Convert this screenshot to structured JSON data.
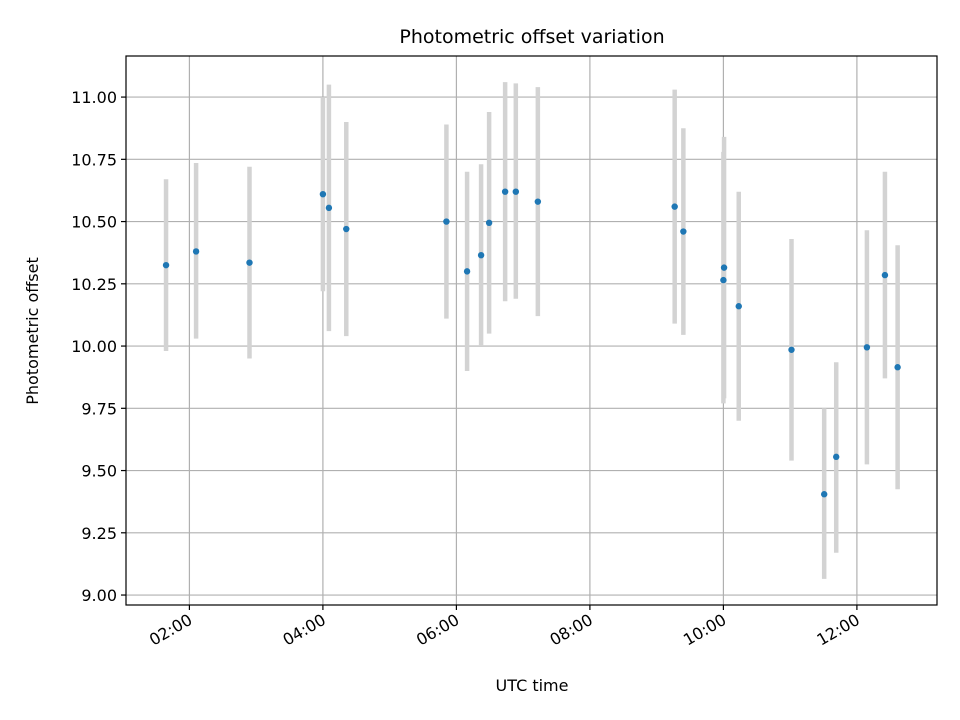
{
  "chart_data": {
    "type": "scatter",
    "title": "Photometric offset variation",
    "xlabel": "UTC time",
    "ylabel": "Photometric offset",
    "xlim": [
      1.05,
      13.2
    ],
    "ylim": [
      8.96,
      11.165
    ],
    "grid": true,
    "x_tick_values": [
      2,
      4,
      6,
      8,
      10,
      12
    ],
    "x_tick_labels": [
      "02:00",
      "04:00",
      "06:00",
      "08:00",
      "10:00",
      "12:00"
    ],
    "y_tick_values": [
      9.0,
      9.25,
      9.5,
      9.75,
      10.0,
      10.25,
      10.5,
      10.75,
      11.0
    ],
    "y_tick_labels": [
      "9.00",
      "9.25",
      "9.50",
      "9.75",
      "10.00",
      "10.25",
      "10.50",
      "10.75",
      "11.00"
    ],
    "marker_color": "#1f77b4",
    "errorbar_color": "#d3d3d3",
    "points": [
      {
        "x": 1.65,
        "y": 10.325,
        "lo": 9.98,
        "hi": 10.67
      },
      {
        "x": 2.1,
        "y": 10.38,
        "lo": 10.03,
        "hi": 10.735
      },
      {
        "x": 2.9,
        "y": 10.335,
        "lo": 9.95,
        "hi": 10.72
      },
      {
        "x": 4.0,
        "y": 10.61,
        "lo": 10.22,
        "hi": 11.0
      },
      {
        "x": 4.09,
        "y": 10.555,
        "lo": 10.06,
        "hi": 11.05
      },
      {
        "x": 4.35,
        "y": 10.47,
        "lo": 10.04,
        "hi": 10.9
      },
      {
        "x": 5.85,
        "y": 10.5,
        "lo": 10.11,
        "hi": 10.89
      },
      {
        "x": 6.16,
        "y": 10.3,
        "lo": 9.9,
        "hi": 10.7
      },
      {
        "x": 6.37,
        "y": 10.365,
        "lo": 10.0,
        "hi": 10.73
      },
      {
        "x": 6.49,
        "y": 10.495,
        "lo": 10.05,
        "hi": 10.94
      },
      {
        "x": 6.73,
        "y": 10.62,
        "lo": 10.18,
        "hi": 11.06
      },
      {
        "x": 6.89,
        "y": 10.62,
        "lo": 10.19,
        "hi": 11.055
      },
      {
        "x": 7.22,
        "y": 10.58,
        "lo": 10.12,
        "hi": 11.04
      },
      {
        "x": 9.27,
        "y": 10.56,
        "lo": 10.09,
        "hi": 11.03
      },
      {
        "x": 9.4,
        "y": 10.46,
        "lo": 10.045,
        "hi": 10.875
      },
      {
        "x": 10.01,
        "y": 10.315,
        "lo": 9.79,
        "hi": 10.84
      },
      {
        "x": 10.0,
        "y": 10.265,
        "lo": 9.77,
        "hi": 10.78
      },
      {
        "x": 10.23,
        "y": 10.16,
        "lo": 9.7,
        "hi": 10.62
      },
      {
        "x": 11.02,
        "y": 9.985,
        "lo": 9.54,
        "hi": 10.43
      },
      {
        "x": 11.51,
        "y": 9.405,
        "lo": 9.065,
        "hi": 9.75
      },
      {
        "x": 11.69,
        "y": 9.555,
        "lo": 9.17,
        "hi": 9.935
      },
      {
        "x": 12.15,
        "y": 9.995,
        "lo": 9.525,
        "hi": 10.465
      },
      {
        "x": 12.42,
        "y": 10.285,
        "lo": 9.87,
        "hi": 10.7
      },
      {
        "x": 12.61,
        "y": 9.915,
        "lo": 9.425,
        "hi": 10.405
      }
    ]
  }
}
